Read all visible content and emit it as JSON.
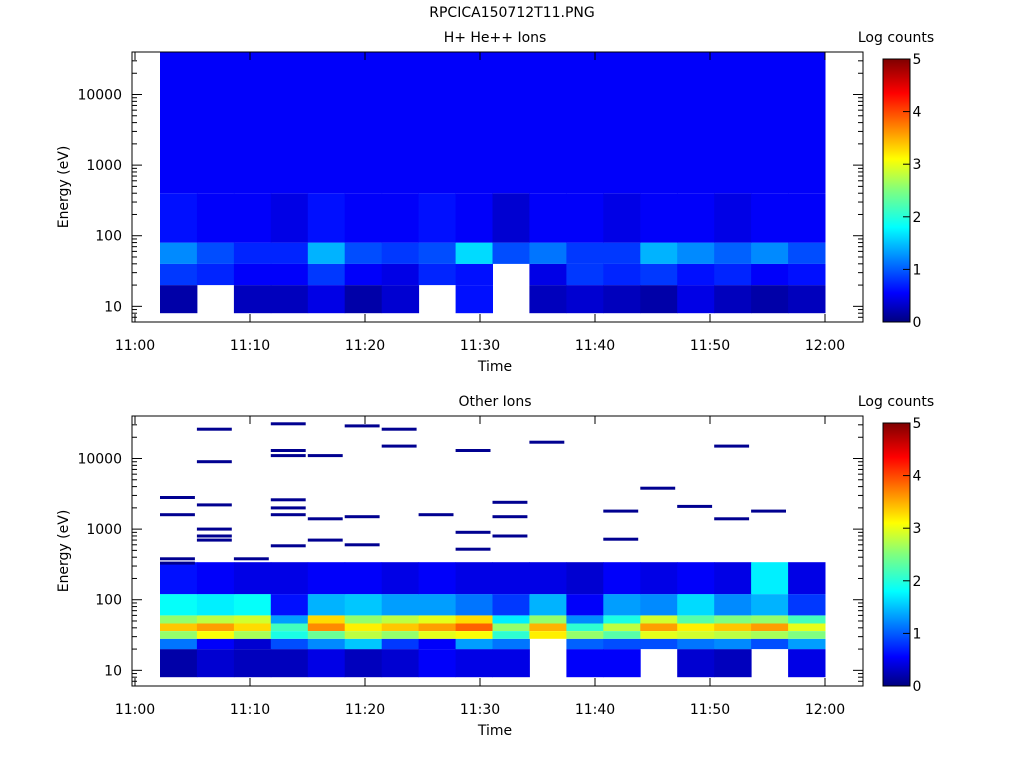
{
  "figure": {
    "title": "RPCICA150712T11.PNG"
  },
  "chart_data": [
    {
      "type": "heatmap",
      "title": "H+ He++ Ions",
      "xlabel": "Time",
      "ylabel": "Energy (eV)",
      "y_scale": "log",
      "ylim": [
        6,
        40000
      ],
      "x_ticks": [
        "11:00",
        "11:10",
        "11:20",
        "11:30",
        "11:40",
        "11:50",
        "12:00"
      ],
      "y_ticks": [
        "10",
        "100",
        "1000",
        "10000"
      ],
      "colorbar": {
        "label": "Log counts",
        "ticks": [
          "0",
          "1",
          "2",
          "3",
          "4",
          "5"
        ],
        "range": [
          0,
          5
        ]
      },
      "time_bins": [
        "11:02",
        "11:06",
        "11:09",
        "11:12",
        "11:15",
        "11:19",
        "11:22",
        "11:25",
        "11:28",
        "11:32",
        "11:35",
        "11:38",
        "11:41",
        "11:45",
        "11:48",
        "11:51",
        "11:54",
        "11:58"
      ],
      "energy_bands": [
        {
          "energy_range": [
            8,
            20
          ],
          "values": [
            0.2,
            null,
            0.3,
            0.3,
            0.5,
            0.2,
            0.4,
            null,
            0.7,
            null,
            0.3,
            0.4,
            0.3,
            0.2,
            0.5,
            0.3,
            0.2,
            0.3
          ]
        },
        {
          "energy_range": [
            20,
            40
          ],
          "values": [
            0.9,
            0.8,
            0.6,
            0.6,
            0.9,
            0.6,
            0.5,
            0.8,
            0.7,
            null,
            0.5,
            0.9,
            0.8,
            0.9,
            0.7,
            0.8,
            0.6,
            0.7
          ]
        },
        {
          "energy_range": [
            40,
            80
          ],
          "values": [
            1.3,
            1.0,
            0.8,
            0.8,
            1.5,
            1.0,
            0.9,
            1.0,
            1.7,
            1.0,
            1.2,
            0.9,
            0.9,
            1.5,
            1.3,
            1.1,
            1.3,
            1.0
          ]
        },
        {
          "energy_range": [
            80,
            400
          ],
          "values": [
            0.7,
            0.6,
            0.6,
            0.5,
            0.7,
            0.6,
            0.6,
            0.7,
            0.6,
            0.4,
            0.6,
            0.6,
            0.5,
            0.6,
            0.6,
            0.5,
            0.6,
            0.6
          ]
        },
        {
          "energy_range": [
            400,
            40000
          ],
          "values": [
            0.6,
            0.6,
            0.6,
            0.6,
            0.6,
            0.6,
            0.6,
            0.6,
            0.6,
            0.6,
            0.6,
            0.6,
            0.6,
            0.6,
            0.6,
            0.6,
            0.6,
            0.6
          ]
        }
      ]
    },
    {
      "type": "heatmap",
      "title": "Other Ions",
      "xlabel": "Time",
      "ylabel": "Energy (eV)",
      "y_scale": "log",
      "ylim": [
        6,
        40000
      ],
      "x_ticks": [
        "11:00",
        "11:10",
        "11:20",
        "11:30",
        "11:40",
        "11:50",
        "12:00"
      ],
      "y_ticks": [
        "10",
        "100",
        "1000",
        "10000"
      ],
      "colorbar": {
        "label": "Log counts",
        "ticks": [
          "0",
          "1",
          "2",
          "3",
          "4",
          "5"
        ],
        "range": [
          0,
          5
        ]
      },
      "time_bins": [
        "11:02",
        "11:06",
        "11:09",
        "11:12",
        "11:15",
        "11:19",
        "11:22",
        "11:25",
        "11:28",
        "11:32",
        "11:35",
        "11:38",
        "11:41",
        "11:45",
        "11:48",
        "11:51",
        "11:54",
        "11:58"
      ],
      "energy_bands": [
        {
          "energy_range": [
            8,
            20
          ],
          "values": [
            0.2,
            0.4,
            0.3,
            0.3,
            0.5,
            0.3,
            0.4,
            0.6,
            0.5,
            0.5,
            null,
            0.6,
            0.6,
            null,
            0.4,
            0.3,
            null,
            0.5
          ]
        },
        {
          "energy_range": [
            20,
            28
          ],
          "values": [
            1.2,
            0.6,
            0.4,
            1.0,
            1.3,
            1.6,
            0.9,
            0.6,
            1.4,
            1.2,
            null,
            1.1,
            1.0,
            1.0,
            1.2,
            1.3,
            1.0,
            1.4
          ]
        },
        {
          "energy_range": [
            28,
            36
          ],
          "values": [
            2.6,
            3.1,
            2.7,
            2.0,
            2.4,
            2.8,
            2.6,
            3.0,
            3.1,
            2.1,
            3.2,
            2.6,
            2.3,
            3.0,
            2.9,
            2.8,
            2.7,
            2.5
          ]
        },
        {
          "energy_range": [
            36,
            46
          ],
          "values": [
            3.4,
            3.6,
            3.3,
            2.2,
            3.7,
            3.2,
            3.4,
            3.6,
            3.9,
            2.6,
            3.5,
            2.1,
            2.8,
            3.6,
            3.2,
            3.4,
            3.6,
            3.0
          ]
        },
        {
          "energy_range": [
            46,
            60
          ],
          "values": [
            2.6,
            2.8,
            2.9,
            1.4,
            3.3,
            2.6,
            2.8,
            3.0,
            3.3,
            1.8,
            2.6,
            1.3,
            2.0,
            2.9,
            2.3,
            2.5,
            2.6,
            2.2
          ]
        },
        {
          "energy_range": [
            60,
            120
          ],
          "values": [
            1.9,
            1.8,
            1.9,
            0.7,
            1.5,
            1.6,
            1.4,
            1.4,
            1.2,
            0.9,
            1.5,
            0.6,
            1.4,
            1.3,
            1.7,
            1.3,
            1.5,
            0.9
          ]
        },
        {
          "energy_range": [
            120,
            340
          ],
          "values": [
            0.7,
            0.6,
            0.5,
            0.5,
            0.6,
            0.6,
            0.5,
            0.6,
            0.5,
            0.5,
            0.5,
            0.4,
            0.6,
            0.5,
            0.6,
            0.5,
            1.8,
            0.5
          ]
        }
      ],
      "sparse_high_energy_counts": [
        {
          "time": "11:02",
          "energies": [
            2800,
            1600,
            380,
            330
          ]
        },
        {
          "time": "11:06",
          "energies": [
            26000,
            9000,
            2200,
            1000,
            800,
            700
          ]
        },
        {
          "time": "11:09",
          "energies": [
            380
          ]
        },
        {
          "time": "11:12",
          "energies": [
            31000,
            13000,
            11000,
            2600,
            2000,
            1600,
            580
          ]
        },
        {
          "time": "11:15",
          "energies": [
            11000,
            1400,
            700
          ]
        },
        {
          "time": "11:19",
          "energies": [
            29000,
            1500,
            600
          ]
        },
        {
          "time": "11:22",
          "energies": [
            26000,
            15000
          ]
        },
        {
          "time": "11:25",
          "energies": [
            1600
          ]
        },
        {
          "time": "11:28",
          "energies": [
            13000,
            900,
            520
          ]
        },
        {
          "time": "11:32",
          "energies": [
            2400,
            1500,
            800
          ]
        },
        {
          "time": "11:35",
          "energies": [
            17000
          ]
        },
        {
          "time": "11:41",
          "energies": [
            1800,
            720
          ]
        },
        {
          "time": "11:45",
          "energies": [
            3800
          ]
        },
        {
          "time": "11:48",
          "energies": [
            2100
          ]
        },
        {
          "time": "11:51",
          "energies": [
            15000,
            1400
          ]
        },
        {
          "time": "11:54",
          "energies": [
            1800
          ]
        }
      ]
    }
  ]
}
